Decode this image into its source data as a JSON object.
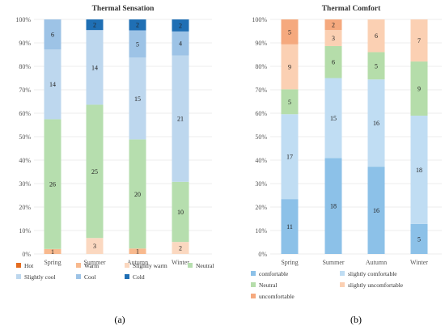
{
  "chart_data": [
    {
      "type": "bar",
      "stacked": "percent",
      "title": "Thermal Sensation",
      "caption": "(a)",
      "categories": [
        "Spring",
        "Summer",
        "Autumn",
        "Winter"
      ],
      "y_ticks": [
        "0%",
        "10%",
        "20%",
        "30%",
        "40%",
        "50%",
        "60%",
        "70%",
        "80%",
        "90%",
        "100%"
      ],
      "ylim": [
        0,
        100
      ],
      "grid": true,
      "legend_position": "bottom",
      "series": [
        {
          "name": "Hot",
          "color": "#E46C1F",
          "values": [
            0,
            0,
            0,
            0
          ]
        },
        {
          "name": "Warm",
          "color": "#F8B98E",
          "values": [
            1,
            0,
            1,
            0
          ]
        },
        {
          "name": "Slightly warm",
          "color": "#FBD8C0",
          "values": [
            0,
            3,
            0,
            2
          ]
        },
        {
          "name": "Neutral",
          "color": "#B6DEAE",
          "values": [
            26,
            25,
            20,
            10
          ]
        },
        {
          "name": "Slightly cool",
          "color": "#BDD7EE",
          "values": [
            14,
            14,
            15,
            21
          ]
        },
        {
          "name": "Cool",
          "color": "#9DC3E6",
          "values": [
            6,
            0,
            5,
            4
          ]
        },
        {
          "name": "Cold",
          "color": "#1F6FB4",
          "values": [
            0,
            2,
            2,
            2
          ]
        }
      ]
    },
    {
      "type": "bar",
      "stacked": "percent",
      "title": "Thermal Comfort",
      "caption": "(b)",
      "categories": [
        "Spring",
        "Summer",
        "Autumn",
        "Winter"
      ],
      "y_ticks": [
        "0%",
        "10%",
        "20%",
        "30%",
        "40%",
        "50%",
        "60%",
        "70%",
        "80%",
        "90%",
        "100%"
      ],
      "ylim": [
        0,
        100
      ],
      "grid": true,
      "legend_position": "bottom",
      "series": [
        {
          "name": "comfortable",
          "color": "#8CC1E8",
          "values": [
            11,
            18,
            16,
            5
          ]
        },
        {
          "name": "slightly comfortable",
          "color": "#C0DDF3",
          "values": [
            17,
            15,
            16,
            18
          ]
        },
        {
          "name": "Neutral",
          "color": "#B5DDAA",
          "values": [
            5,
            6,
            5,
            9
          ]
        },
        {
          "name": "slightly uncomfortable",
          "color": "#FBD0B3",
          "values": [
            9,
            3,
            6,
            7
          ]
        },
        {
          "name": "uncomfortable",
          "color": "#F5A97E",
          "values": [
            5,
            2,
            0,
            0
          ]
        }
      ]
    }
  ]
}
